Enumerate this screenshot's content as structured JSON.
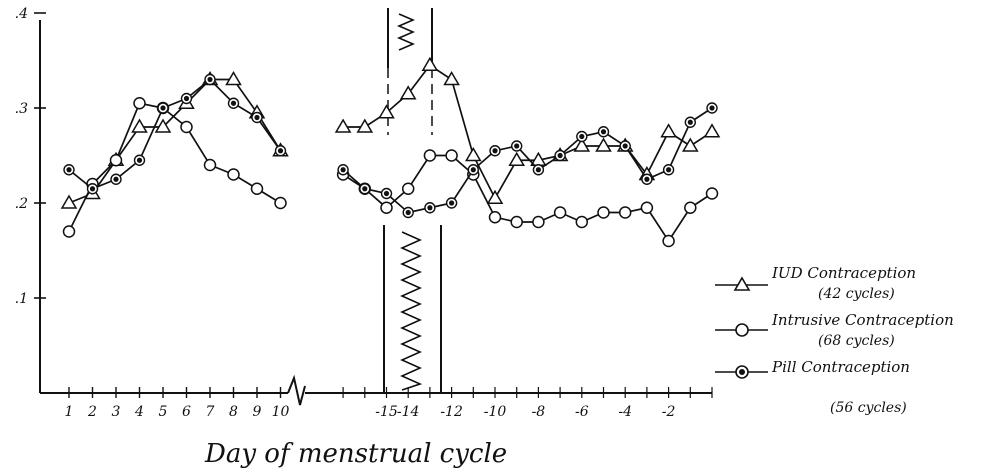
{
  "chart_data": {
    "type": "line",
    "title": "",
    "xlabel": "Day of menstrual cycle",
    "ylabel": "",
    "ylim": [
      0,
      0.4
    ],
    "y_ticks": [
      ".4",
      ".3",
      ".2",
      ".1"
    ],
    "x_ticks_left": [
      "1",
      "2",
      "3",
      "4",
      "5",
      "6",
      "7",
      "8",
      "9",
      "10"
    ],
    "x_ticks_right": [
      "-15",
      "-14",
      "-12",
      "-10",
      "-8",
      "-6",
      "-4",
      "-2"
    ],
    "x_ticks_right_values": [
      -15,
      -14,
      -12,
      -10,
      -8,
      -6,
      -4,
      -2
    ],
    "legend_placement": "right",
    "grid": false,
    "series": [
      {
        "name": "IUD Contraception",
        "note": "(42 cycles)",
        "marker": "triangle",
        "left": [
          [
            1,
            0.2
          ],
          [
            2,
            0.21
          ],
          [
            3,
            0.245
          ],
          [
            4,
            0.28
          ],
          [
            5,
            0.28
          ],
          [
            6,
            0.305
          ],
          [
            7,
            0.33
          ],
          [
            8,
            0.33
          ],
          [
            9,
            0.295
          ],
          [
            10,
            0.255
          ]
        ],
        "right": [
          [
            -17,
            0.28
          ],
          [
            -16,
            0.28
          ],
          [
            -15,
            0.295
          ],
          [
            -14,
            0.315
          ],
          [
            -13,
            0.345
          ],
          [
            -12,
            0.33
          ],
          [
            -11,
            0.25
          ],
          [
            -10,
            0.205
          ],
          [
            -9,
            0.245
          ],
          [
            -8,
            0.245
          ],
          [
            -7,
            0.25
          ],
          [
            -6,
            0.26
          ],
          [
            -5,
            0.26
          ],
          [
            -4,
            0.26
          ],
          [
            -3,
            0.23
          ],
          [
            -2,
            0.275
          ],
          [
            -1,
            0.26
          ],
          [
            0,
            0.275
          ]
        ]
      },
      {
        "name": "Intrusive Contraception",
        "note": "(68 cycles)",
        "marker": "circle",
        "left": [
          [
            1,
            0.17
          ],
          [
            2,
            0.22
          ],
          [
            3,
            0.245
          ],
          [
            4,
            0.305
          ],
          [
            5,
            0.3
          ],
          [
            6,
            0.28
          ],
          [
            7,
            0.24
          ],
          [
            8,
            0.23
          ],
          [
            9,
            0.215
          ],
          [
            10,
            0.2
          ]
        ],
        "right": [
          [
            -17,
            0.23
          ],
          [
            -16,
            0.215
          ],
          [
            -15,
            0.195
          ],
          [
            -14,
            0.215
          ],
          [
            -13,
            0.25
          ],
          [
            -12,
            0.25
          ],
          [
            -11,
            0.23
          ],
          [
            -10,
            0.185
          ],
          [
            -9,
            0.18
          ],
          [
            -8,
            0.18
          ],
          [
            -7,
            0.19
          ],
          [
            -6,
            0.18
          ],
          [
            -5,
            0.19
          ],
          [
            -4,
            0.19
          ],
          [
            -3,
            0.195
          ],
          [
            -2,
            0.16
          ],
          [
            -1,
            0.195
          ],
          [
            0,
            0.21
          ]
        ]
      },
      {
        "name": "Pill Contraception",
        "note": "(56 cycles)",
        "marker": "dot",
        "left": [
          [
            1,
            0.235
          ],
          [
            2,
            0.215
          ],
          [
            3,
            0.225
          ],
          [
            4,
            0.245
          ],
          [
            5,
            0.3
          ],
          [
            6,
            0.31
          ],
          [
            7,
            0.33
          ],
          [
            8,
            0.305
          ],
          [
            9,
            0.29
          ],
          [
            10,
            0.255
          ]
        ],
        "right": [
          [
            -17,
            0.235
          ],
          [
            -16,
            0.215
          ],
          [
            -15,
            0.21
          ],
          [
            -14,
            0.19
          ],
          [
            -13,
            0.195
          ],
          [
            -12,
            0.2
          ],
          [
            -11,
            0.235
          ],
          [
            -10,
            0.255
          ],
          [
            -9,
            0.26
          ],
          [
            -8,
            0.235
          ],
          [
            -7,
            0.25
          ],
          [
            -6,
            0.27
          ],
          [
            -5,
            0.275
          ],
          [
            -4,
            0.26
          ],
          [
            -3,
            0.225
          ],
          [
            -2,
            0.235
          ],
          [
            -1,
            0.285
          ],
          [
            0,
            0.3
          ]
        ]
      }
    ]
  }
}
